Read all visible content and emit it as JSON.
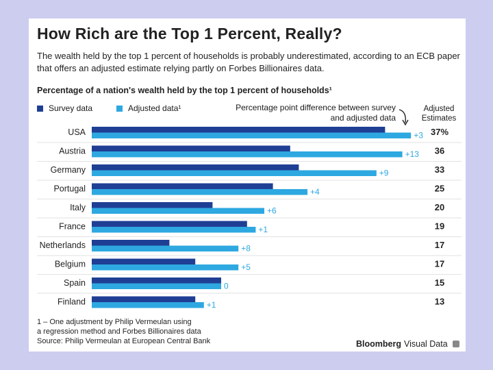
{
  "title": "How Rich are the Top 1 Percent, Really?",
  "subtitle": "The wealth held by the top 1 percent of households is probably underestimated, according to an ECB paper that offers an adjusted estimate relying partly on Forbes Billionaires data.",
  "chart_heading": "Percentage of a nation's wealth held by the top 1 percent of households¹",
  "legend": {
    "survey": "Survey data",
    "adjusted": "Adjusted data¹"
  },
  "diff_note": "Percentage point difference between survey and adjusted data",
  "adjusted_header": "Adjusted Estimates",
  "colors": {
    "survey": "#1f3f94",
    "adjusted": "#2ea8e0",
    "diff_text": "#2ea8e0"
  },
  "chart_data": {
    "type": "bar",
    "title": "Percentage of a nation's wealth held by the top 1 percent of households",
    "categories": [
      "USA",
      "Austria",
      "Germany",
      "Portugal",
      "Italy",
      "France",
      "Netherlands",
      "Belgium",
      "Spain",
      "Finland"
    ],
    "series": [
      {
        "name": "Survey data",
        "values": [
          34,
          23,
          24,
          21,
          14,
          18,
          9,
          12,
          15,
          12
        ]
      },
      {
        "name": "Adjusted data",
        "values": [
          37,
          36,
          33,
          25,
          20,
          19,
          17,
          17,
          15,
          13
        ]
      }
    ],
    "differences": [
      "+3",
      "+13",
      "+9",
      "+4",
      "+6",
      "+1",
      "+8",
      "+5",
      "0",
      "+1"
    ],
    "adjusted_labels": [
      "37%",
      "36",
      "33",
      "25",
      "20",
      "19",
      "17",
      "17",
      "15",
      "13"
    ],
    "xlim": [
      0,
      40
    ]
  },
  "footnote": [
    "1 – One adjustment by Philip Vermeulan using",
    "a regression method and Forbes Billionaires data",
    "Source: Philip Vermeulan at European Central Bank"
  ],
  "brand": {
    "bold": "Bloomberg",
    "rest": "Visual Data"
  }
}
